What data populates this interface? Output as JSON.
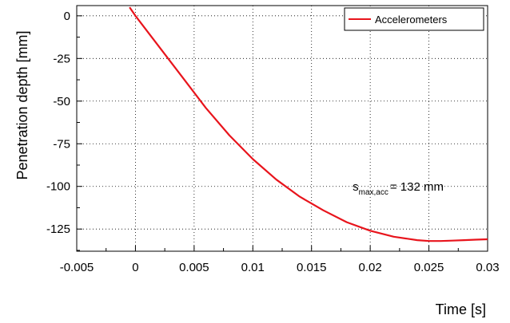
{
  "chart_data": {
    "type": "line",
    "xlabel": "Time [s]",
    "ylabel": "Penetration depth [mm]",
    "xlim": [
      -0.005,
      0.03
    ],
    "ylim": [
      -138,
      6
    ],
    "x_ticks": [
      -0.005,
      0,
      0.005,
      0.01,
      0.015,
      0.02,
      0.025,
      0.03
    ],
    "x_tick_labels": [
      "-0.005",
      "0",
      "0.005",
      "0.01",
      "0.015",
      "0.02",
      "0.025",
      "0.03"
    ],
    "y_ticks": [
      0,
      -25,
      -50,
      -75,
      -100,
      -125
    ],
    "y_tick_labels": [
      "0",
      "-25",
      "-50",
      "-75",
      "-100",
      "-125"
    ],
    "grid": true,
    "legend_position": "top-right",
    "series": [
      {
        "name": "Accelerometers",
        "color": "#e8141c",
        "x": [
          -0.0005,
          0.0,
          0.002,
          0.004,
          0.006,
          0.008,
          0.01,
          0.012,
          0.014,
          0.016,
          0.018,
          0.02,
          0.022,
          0.024,
          0.025,
          0.026,
          0.027,
          0.028,
          0.029,
          0.03
        ],
        "y": [
          5,
          0,
          -18,
          -36,
          -54,
          -70,
          -84,
          -96,
          -106,
          -114,
          -121,
          -126,
          -129.5,
          -131.5,
          -132,
          -132,
          -131.8,
          -131.5,
          -131.2,
          -131
        ]
      }
    ],
    "annotations": [
      {
        "main": "s",
        "sub": "max,acc",
        "rest": "= 132 mm",
        "x": 0.0185,
        "y": -102.5
      }
    ]
  }
}
